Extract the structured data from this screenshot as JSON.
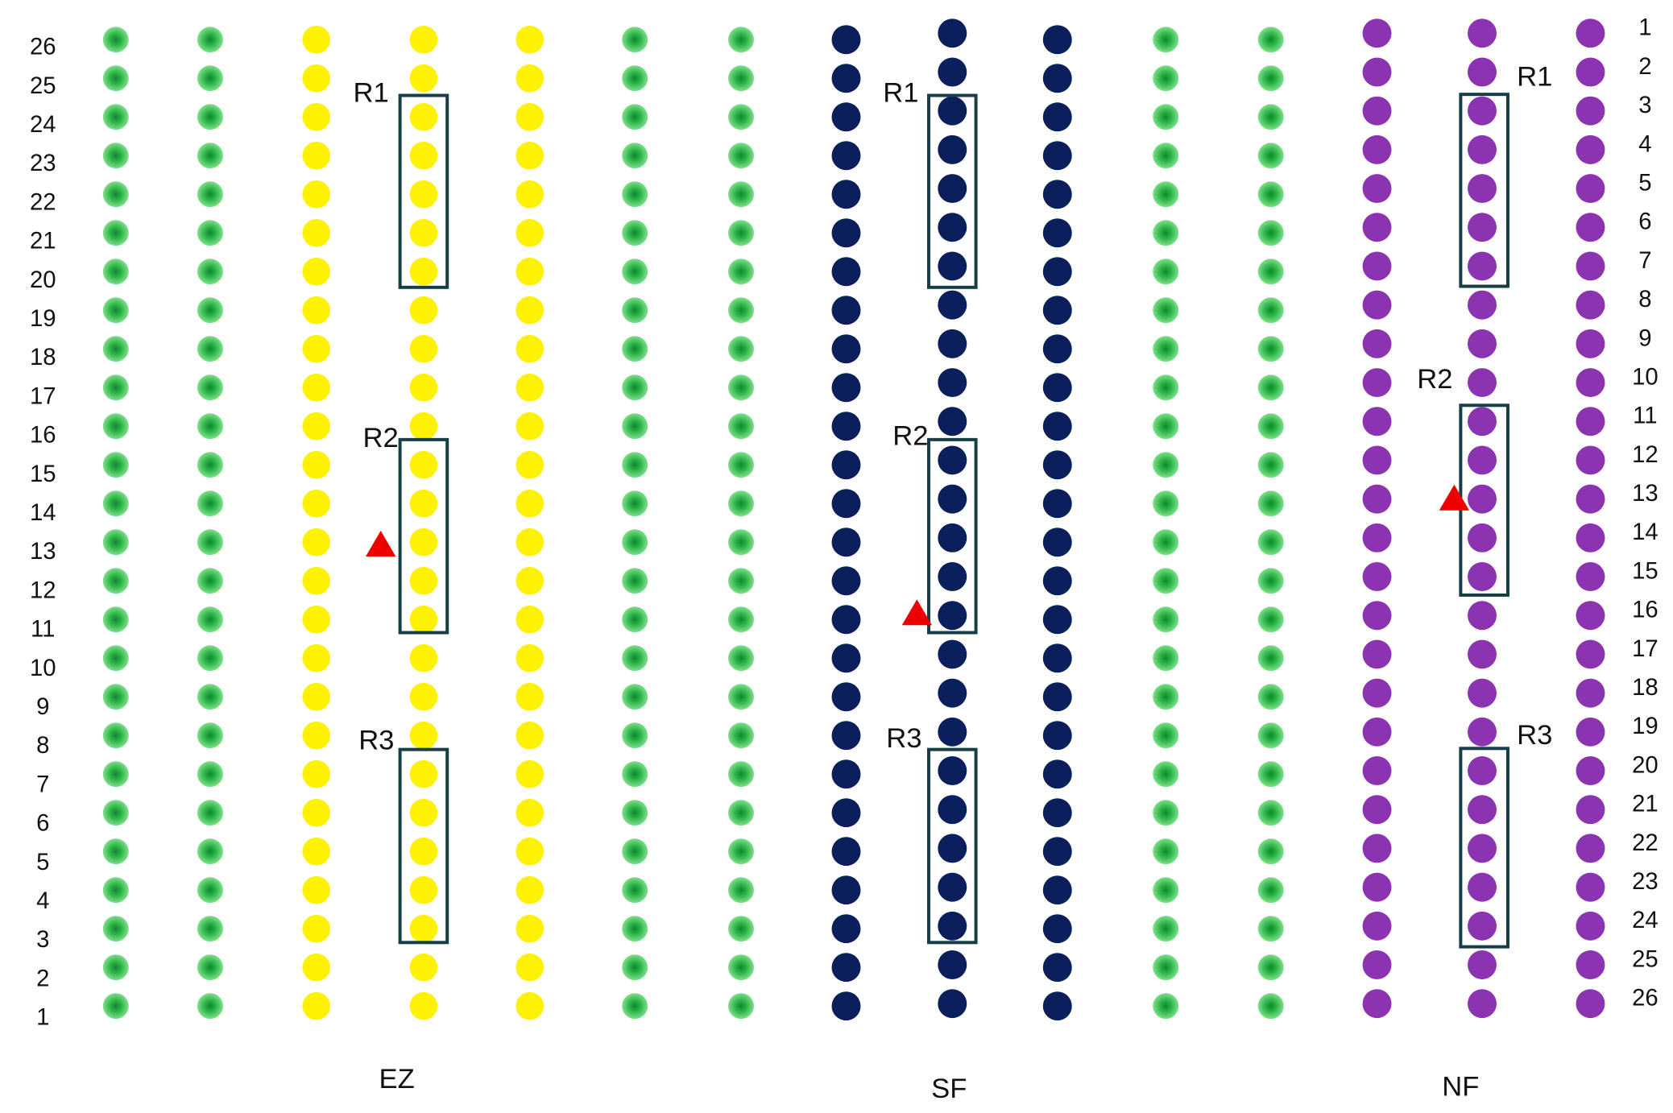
{
  "left_rows": [
    26,
    25,
    24,
    23,
    22,
    21,
    20,
    19,
    18,
    17,
    16,
    15,
    14,
    13,
    12,
    11,
    10,
    9,
    8,
    7,
    6,
    5,
    4,
    3,
    2,
    1
  ],
  "right_rows": [
    1,
    2,
    3,
    4,
    5,
    6,
    7,
    8,
    9,
    10,
    11,
    12,
    13,
    14,
    15,
    16,
    17,
    18,
    19,
    20,
    21,
    22,
    23,
    24,
    25,
    26
  ],
  "groups": [
    {
      "name": "EZ",
      "regions": [
        "R1",
        "R2",
        "R3"
      ]
    },
    {
      "name": "SF",
      "regions": [
        "R1",
        "R2",
        "R3"
      ]
    },
    {
      "name": "NF",
      "regions": [
        "R1",
        "R2",
        "R3"
      ]
    }
  ]
}
